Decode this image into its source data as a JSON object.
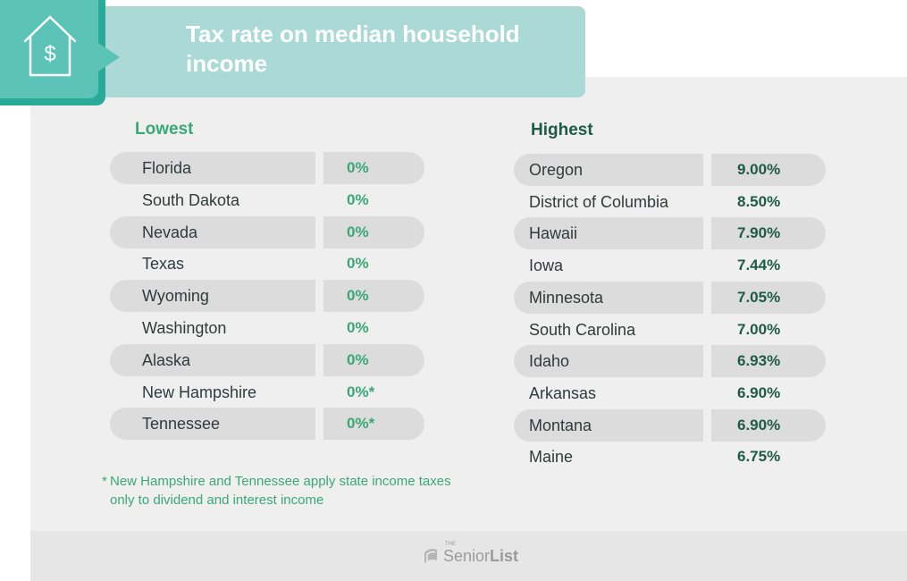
{
  "title": "Tax rate on median household income",
  "lowest": {
    "heading": "Lowest",
    "rows": [
      {
        "state": "Florida",
        "rate": "0%"
      },
      {
        "state": "South Dakota",
        "rate": "0%"
      },
      {
        "state": "Nevada",
        "rate": "0%"
      },
      {
        "state": "Texas",
        "rate": "0%"
      },
      {
        "state": "Wyoming",
        "rate": "0%"
      },
      {
        "state": "Washington",
        "rate": "0%"
      },
      {
        "state": "Alaska",
        "rate": "0%"
      },
      {
        "state": "New Hampshire",
        "rate": "0%*"
      },
      {
        "state": "Tennessee",
        "rate": "0%*"
      }
    ]
  },
  "highest": {
    "heading": "Highest",
    "rows": [
      {
        "state": "Oregon",
        "rate": "9.00%"
      },
      {
        "state": "District of Columbia",
        "rate": "8.50%"
      },
      {
        "state": "Hawaii",
        "rate": "7.90%"
      },
      {
        "state": "Iowa",
        "rate": "7.44%"
      },
      {
        "state": "Minnesota",
        "rate": "7.05%"
      },
      {
        "state": "South Carolina",
        "rate": "7.00%"
      },
      {
        "state": "Idaho",
        "rate": "6.93%"
      },
      {
        "state": "Arkansas",
        "rate": "6.90%"
      },
      {
        "state": "Montana",
        "rate": "6.90%"
      },
      {
        "state": "Maine",
        "rate": "6.75%"
      }
    ]
  },
  "footnote": {
    "marker": "*",
    "text": "New Hampshire and Tennessee apply state income taxes only to dividend and interest income"
  },
  "logo": {
    "the": "THE",
    "senior": "Senior",
    "list": "List"
  },
  "icon": "house-dollar-icon",
  "colors": {
    "accent_green": "#3aa77a",
    "dark_green": "#1e5b45",
    "teal": "#5cc3b8",
    "banner": "#aad9d6"
  }
}
